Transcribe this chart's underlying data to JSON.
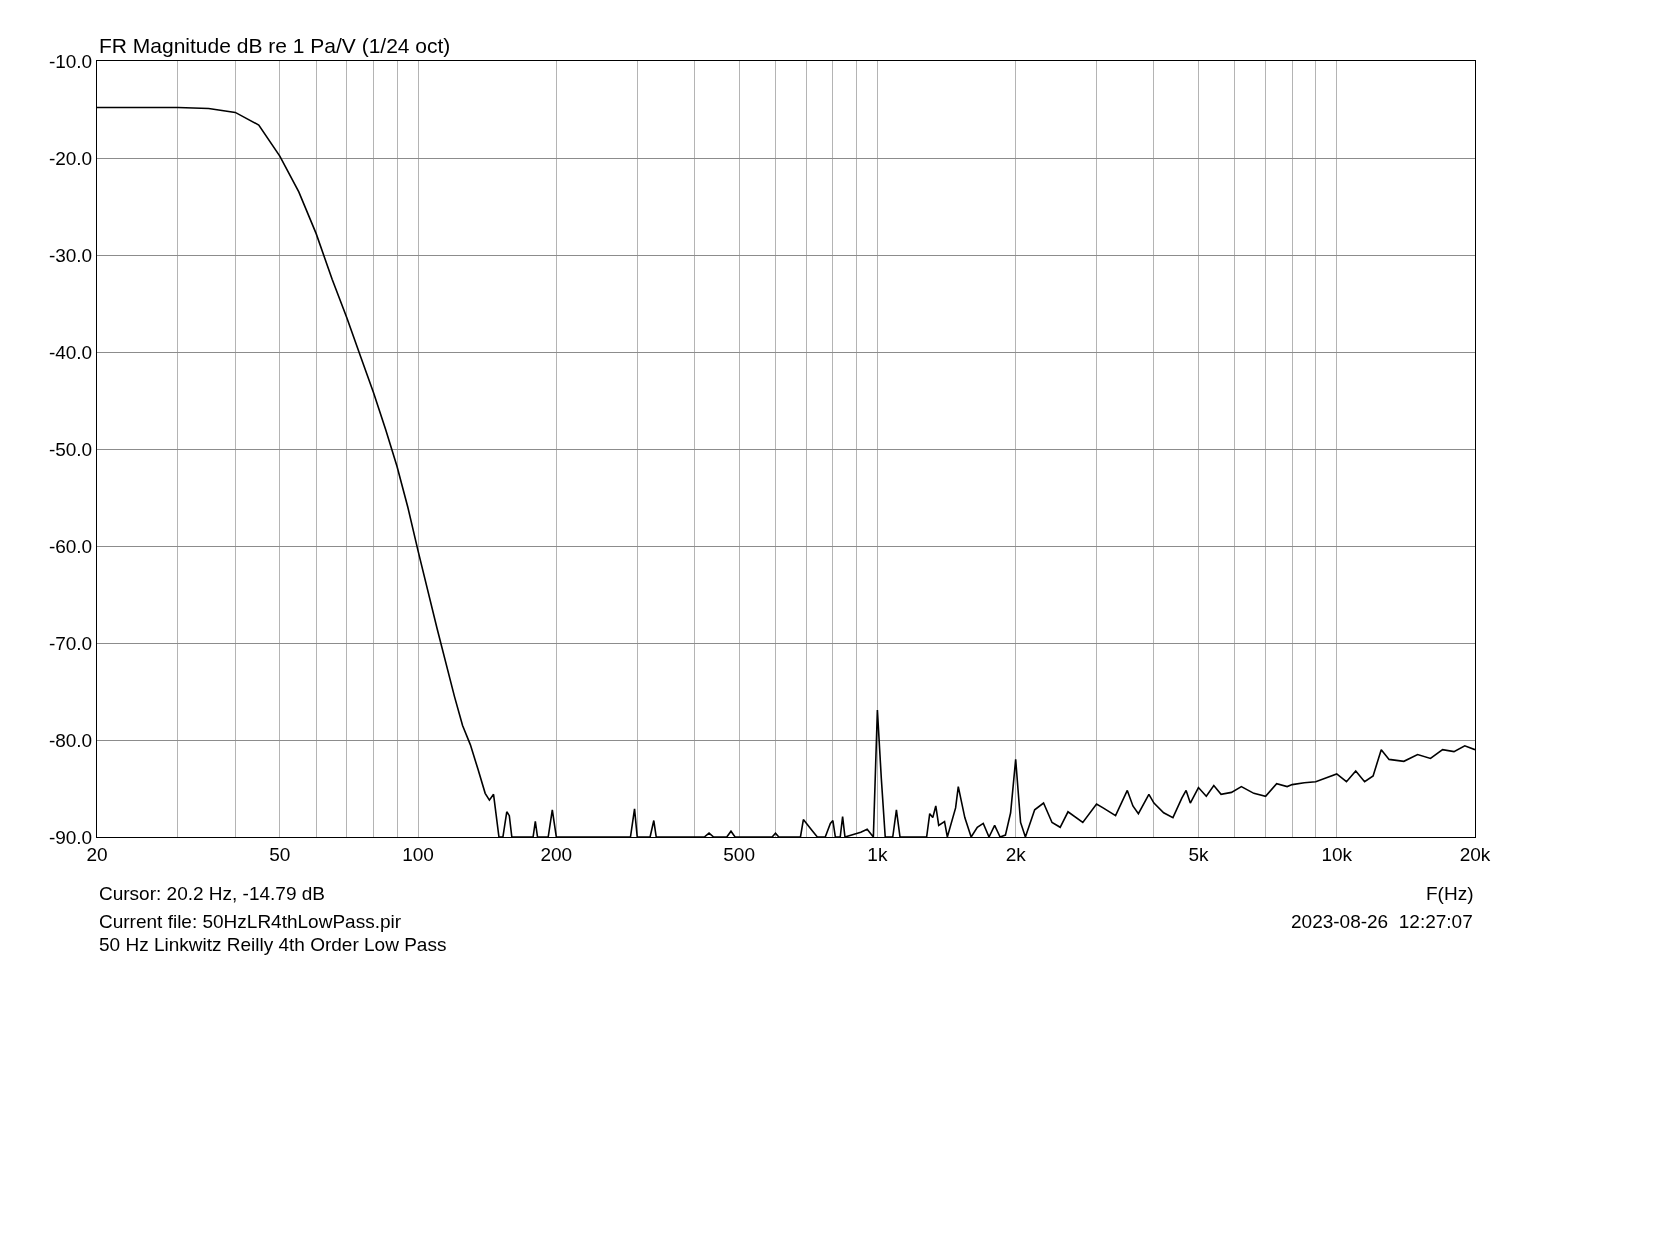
{
  "chart_data": {
    "type": "line",
    "title": "FR Magnitude dB re 1 Pa/V (1/24 oct)",
    "xlabel": "F(Hz)",
    "annotations": [
      "Cursor: 20.2 Hz, -14.79 dB",
      "Current file: 50HzLR4thLowPass.pir",
      "50 Hz Linkwitz Reilly 4th Order Low Pass",
      "2023-08-26  12:27:07"
    ],
    "log": "x",
    "grid": true,
    "marker": "none",
    "line_style": "solid",
    "xlim": [
      20,
      20000
    ],
    "ylim": [
      -90,
      -10
    ],
    "xticks": [
      20,
      {
        "value": 30,
        "label": null
      },
      {
        "value": 40,
        "label": null
      },
      50,
      {
        "value": 60,
        "label": null
      },
      {
        "value": 70,
        "label": null
      },
      {
        "value": 80,
        "label": null
      },
      {
        "value": 90,
        "label": null
      },
      100,
      200,
      {
        "value": 300,
        "label": null
      },
      {
        "value": 400,
        "label": null
      },
      500,
      {
        "value": 600,
        "label": null
      },
      {
        "value": 700,
        "label": null
      },
      {
        "value": 800,
        "label": null
      },
      {
        "value": 900,
        "label": null
      },
      {
        "value": 1000,
        "label": "1k"
      },
      {
        "value": 2000,
        "label": "2k"
      },
      {
        "value": 3000,
        "label": null
      },
      {
        "value": 4000,
        "label": null
      },
      {
        "value": 5000,
        "label": "5k"
      },
      {
        "value": 6000,
        "label": null
      },
      {
        "value": 7000,
        "label": null
      },
      {
        "value": 8000,
        "label": null
      },
      {
        "value": 9000,
        "label": null
      },
      {
        "value": 10000,
        "label": "10k"
      },
      {
        "value": 20000,
        "label": "20k"
      }
    ],
    "yticks": [
      {
        "value": -90,
        "label": "-90.0"
      },
      {
        "value": -80,
        "label": "-80.0"
      },
      {
        "value": -70,
        "label": "-70.0"
      },
      {
        "value": -60,
        "label": "-60.0"
      },
      {
        "value": -50,
        "label": "-50.0"
      },
      {
        "value": -40,
        "label": "-40.0"
      },
      {
        "value": -30,
        "label": "-30.0"
      },
      {
        "value": -20,
        "label": "-20.0"
      },
      {
        "value": -10,
        "label": "-10.0"
      }
    ],
    "series": [
      {
        "color": "#000000",
        "x": [
          20,
          25,
          30,
          35,
          40,
          45,
          50,
          55,
          60,
          65,
          70,
          75,
          80,
          85,
          90,
          95,
          100,
          110,
          120,
          125,
          130,
          135,
          140,
          143,
          146,
          150,
          153,
          156,
          158,
          160,
          163,
          165,
          178,
          180,
          182,
          192,
          196,
          200,
          290,
          296,
          300,
          320,
          326,
          330,
          420,
          430,
          440,
          470,
          480,
          490,
          590,
          600,
          610,
          680,
          690,
          720,
          740,
          770,
          790,
          800,
          810,
          830,
          840,
          850,
          920,
          950,
          980,
          1000,
          1020,
          1040,
          1080,
          1100,
          1120,
          1280,
          1300,
          1320,
          1340,
          1360,
          1400,
          1420,
          1480,
          1500,
          1550,
          1600,
          1650,
          1700,
          1750,
          1800,
          1850,
          1900,
          1950,
          2000,
          2050,
          2100,
          2200,
          2300,
          2400,
          2500,
          2600,
          2800,
          3000,
          3100,
          3300,
          3500,
          3600,
          3700,
          3900,
          4000,
          4200,
          4400,
          4600,
          4700,
          4800,
          5000,
          5200,
          5400,
          5600,
          5900,
          6200,
          6600,
          7000,
          7400,
          7800,
          8000,
          8500,
          9000,
          9500,
          10000,
          10500,
          11000,
          11500,
          12000,
          12500,
          13000,
          14000,
          15000,
          16000,
          17000,
          18000,
          19000,
          20000
        ],
        "values": [
          -14.8,
          -14.8,
          -14.8,
          -14.9,
          -15.3,
          -16.6,
          -19.8,
          -23.5,
          -27.8,
          -32.5,
          -36.5,
          -40.5,
          -44.2,
          -48,
          -51.8,
          -56,
          -60.5,
          -68.5,
          -75.5,
          -78.5,
          -80.5,
          -83,
          -85.5,
          -86.2,
          -85.6,
          -90,
          -90,
          -87.4,
          -87.8,
          -90,
          -90,
          -90,
          -90,
          -88.4,
          -90,
          -90,
          -87.2,
          -90,
          -90,
          -87.1,
          -90,
          -90,
          -88.3,
          -90,
          -90,
          -89.6,
          -90,
          -90,
          -89.4,
          -90,
          -90,
          -89.6,
          -90,
          -90,
          -88.2,
          -89.3,
          -90,
          -90,
          -88.6,
          -88.3,
          -90,
          -90,
          -87.9,
          -90,
          -89.5,
          -89.2,
          -90,
          -76.9,
          -84,
          -90,
          -90,
          -87.2,
          -90,
          -90,
          -87.6,
          -88,
          -86.8,
          -88.8,
          -88.4,
          -90,
          -87,
          -84.8,
          -88,
          -90,
          -89,
          -88.6,
          -90,
          -88.8,
          -90,
          -89.8,
          -87.5,
          -82,
          -88.5,
          -90,
          -87.2,
          -86.5,
          -88.5,
          -89,
          -87.4,
          -88.5,
          -86.6,
          -87,
          -87.8,
          -85.2,
          -86.8,
          -87.6,
          -85.6,
          -86.5,
          -87.5,
          -88,
          -86,
          -85.2,
          -86.5,
          -84.9,
          -85.8,
          -84.7,
          -85.6,
          -85.4,
          -84.8,
          -85.5,
          -85.8,
          -84.5,
          -84.8,
          -84.6,
          -84.4,
          -84.3,
          -83.9,
          -83.5,
          -84.3,
          -83.2,
          -84.3,
          -83.7,
          -81,
          -82,
          -82.2,
          -81.5,
          -81.9,
          -81,
          -81.2,
          -80.6,
          -81
        ]
      }
    ]
  }
}
